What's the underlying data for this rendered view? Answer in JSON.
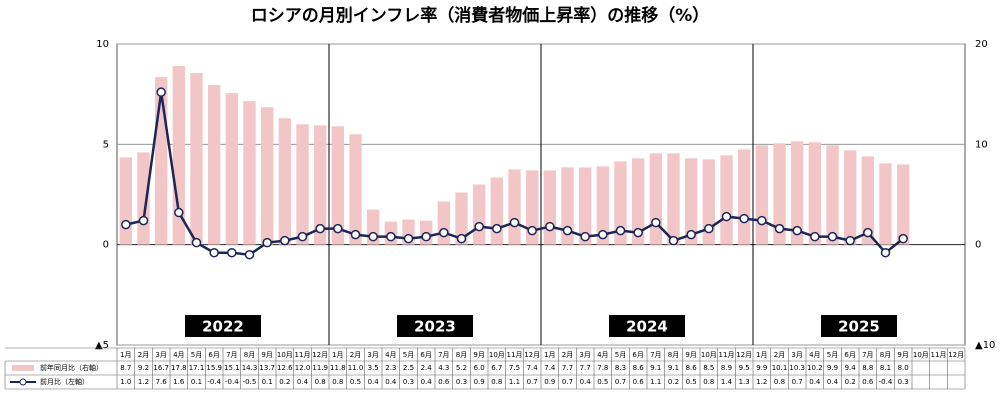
{
  "chart_data": {
    "type": "bar-line",
    "title": "ロシアの月別インフレ率（消費者物価上昇率）の推移（%）",
    "categories": [
      "1月",
      "2月",
      "3月",
      "4月",
      "5月",
      "6月",
      "7月",
      "8月",
      "9月",
      "10月",
      "11月",
      "12月",
      "1月",
      "2月",
      "3月",
      "4月",
      "5月",
      "6月",
      "7月",
      "8月",
      "9月",
      "10月",
      "11月",
      "12月",
      "1月",
      "2月",
      "3月",
      "4月",
      "5月",
      "6月",
      "7月",
      "8月",
      "9月",
      "10月",
      "11月",
      "12月",
      "1月",
      "2月",
      "3月",
      "4月",
      "5月",
      "6月",
      "7月",
      "8月",
      "9月",
      "10月",
      "11月",
      "12月"
    ],
    "year_labels": [
      "2022",
      "2023",
      "2024",
      "2025"
    ],
    "series": [
      {
        "name": "前年同月比（右軸）",
        "type": "bar",
        "axis": "y2",
        "color": "#f2c6c6",
        "values": [
          8.7,
          9.2,
          16.7,
          17.8,
          17.1,
          15.9,
          15.1,
          14.3,
          13.7,
          12.6,
          12.0,
          11.9,
          11.8,
          11.0,
          3.5,
          2.3,
          2.5,
          2.4,
          4.3,
          5.2,
          6.0,
          6.7,
          7.5,
          7.4,
          7.4,
          7.7,
          7.7,
          7.8,
          8.3,
          8.6,
          9.1,
          9.1,
          8.6,
          8.5,
          8.9,
          9.5,
          9.9,
          10.1,
          10.3,
          10.2,
          9.9,
          9.4,
          8.8,
          8.1,
          8.0,
          null,
          null,
          null
        ],
        "value_labels": [
          "8.7",
          "9.2",
          "16.7",
          "17.8",
          "17.1",
          "15.9",
          "15.1",
          "14.3",
          "13.7",
          "12.6",
          "12.0",
          "11.9",
          "11.8",
          "11.0",
          "3.5",
          "2.3",
          "2.5",
          "2.4",
          "4.3",
          "5.2",
          "6.0",
          "6.7",
          "7.5",
          "7.4",
          "7.4",
          "7.7",
          "7.7",
          "7.8",
          "8.3",
          "8.6",
          "9.1",
          "9.1",
          "8.6",
          "8.5",
          "8.9",
          "9.5",
          "9.9",
          "10.1",
          "10.3",
          "10.2",
          "9.9",
          "9.4",
          "8.8",
          "8.1",
          "8.0",
          null,
          null,
          null
        ]
      },
      {
        "name": "前月比（左軸）",
        "type": "line",
        "axis": "y",
        "color": "#1c2657",
        "values": [
          1.0,
          1.2,
          7.6,
          1.6,
          0.1,
          -0.4,
          -0.4,
          -0.5,
          0.1,
          0.2,
          0.4,
          0.8,
          0.8,
          0.5,
          0.4,
          0.4,
          0.3,
          0.4,
          0.6,
          0.3,
          0.9,
          0.8,
          1.1,
          0.7,
          0.9,
          0.7,
          0.4,
          0.5,
          0.7,
          0.6,
          1.1,
          0.2,
          0.5,
          0.8,
          1.4,
          1.3,
          1.2,
          0.8,
          0.7,
          0.4,
          0.4,
          0.2,
          0.6,
          -0.4,
          0.3,
          null,
          null,
          null
        ],
        "value_labels": [
          "1.0",
          "1.2",
          "7.6",
          "1.6",
          "0.1",
          "-0.4",
          "-0.4",
          "-0.5",
          "0.1",
          "0.2",
          "0.4",
          "0.8",
          "0.8",
          "0.5",
          "0.4",
          "0.4",
          "0.3",
          "0.4",
          "0.6",
          "0.3",
          "0.9",
          "0.8",
          "1.1",
          "0.7",
          "0.9",
          "0.7",
          "0.4",
          "0.5",
          "0.7",
          "0.6",
          "1.1",
          "0.2",
          "0.5",
          "0.8",
          "1.4",
          "1.3",
          "1.2",
          "0.8",
          "0.7",
          "0.4",
          "0.4",
          "0.2",
          "0.6",
          "-0.4",
          "0.3",
          null,
          null,
          null
        ]
      }
    ],
    "ylim": [
      -5,
      10
    ],
    "yticks": [
      {
        "value": -5,
        "label": "▲5"
      },
      0,
      5,
      10
    ],
    "y2lim": [
      -10,
      20
    ],
    "y2ticks": [
      {
        "value": -10,
        "label": "▲10"
      },
      0,
      10,
      20
    ],
    "grid": true
  }
}
